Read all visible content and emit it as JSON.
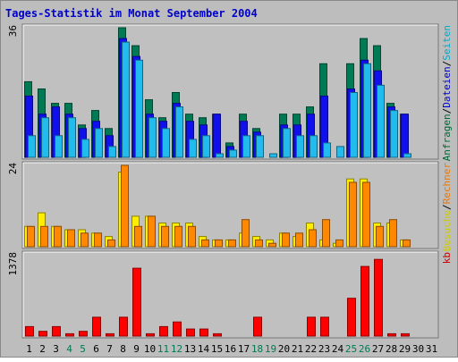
{
  "chart_data": {
    "type": "bar",
    "title": "Tages-Statistik im Monat September 2004",
    "categories": [
      "1",
      "2",
      "3",
      "4",
      "5",
      "6",
      "7",
      "8",
      "9",
      "10",
      "11",
      "12",
      "13",
      "14",
      "15",
      "16",
      "17",
      "18",
      "19",
      "20",
      "21",
      "22",
      "23",
      "24",
      "25",
      "26",
      "27",
      "28",
      "29",
      "30",
      "31"
    ],
    "weekend_days": [
      "4",
      "5",
      "11",
      "12",
      "18",
      "19",
      "25",
      "26"
    ],
    "panels": [
      {
        "name": "top",
        "ymax_label": "36",
        "ymax": 36,
        "legend": [
          {
            "label": "Anfragen",
            "color": "#006633"
          },
          {
            "label": "/",
            "color": "#000000"
          },
          {
            "label": "Dateien",
            "color": "#0000cc"
          },
          {
            "label": "/",
            "color": "#000000"
          },
          {
            "label": "Seiten",
            "color": "#00aacc"
          }
        ],
        "series": [
          {
            "name": "Anfragen",
            "color": "#007a55",
            "values": [
              21,
              19,
              15,
              15,
              9,
              13,
              8,
              36,
              31,
              16,
              11,
              18,
              12,
              11,
              12,
              4,
              12,
              8,
              0,
              12,
              12,
              14,
              26,
              0,
              26,
              33,
              31,
              15,
              12,
              0,
              0
            ]
          },
          {
            "name": "Dateien",
            "color": "#1010ee",
            "values": [
              17,
              12,
              14,
              12,
              8,
              10,
              6,
              33,
              28,
              12,
              10,
              15,
              10,
              9,
              12,
              3,
              10,
              7,
              0,
              9,
              9,
              12,
              17,
              0,
              19,
              27,
              24,
              14,
              12,
              0,
              0
            ]
          },
          {
            "name": "Seiten",
            "color": "#22bbee",
            "values": [
              6,
              11,
              6,
              11,
              5,
              8,
              3,
              32,
              27,
              11,
              8,
              14,
              5,
              6,
              1,
              2,
              6,
              6,
              1,
              8,
              6,
              6,
              4,
              3,
              18,
              26,
              20,
              13,
              1,
              0,
              0
            ]
          }
        ]
      },
      {
        "name": "middle",
        "ymax_label": "24",
        "ymax": 24,
        "legend": [
          {
            "label": "Besuche",
            "color": "#cccc00"
          },
          {
            "label": "/",
            "color": "#000000"
          },
          {
            "label": "Rechner",
            "color": "#ee7700"
          }
        ],
        "series": [
          {
            "name": "Besuche",
            "color": "#ffee00",
            "values": [
              6,
              10,
              6,
              5,
              5,
              4,
              3,
              22,
              9,
              9,
              7,
              7,
              7,
              3,
              2,
              2,
              4,
              3,
              2,
              4,
              3,
              7,
              2,
              1,
              20,
              20,
              7,
              7,
              2,
              0,
              0
            ]
          },
          {
            "name": "Rechner",
            "color": "#ff8800",
            "values": [
              6,
              6,
              6,
              5,
              4,
              4,
              2,
              24,
              6,
              9,
              6,
              6,
              6,
              2,
              2,
              2,
              8,
              2,
              1,
              4,
              4,
              5,
              8,
              2,
              19,
              19,
              6,
              8,
              2,
              0,
              0
            ]
          }
        ]
      },
      {
        "name": "bottom",
        "ymax_label": "1378",
        "ymax": 1378,
        "legend": [
          {
            "label": "kb",
            "color": "#cc0000"
          }
        ],
        "series": [
          {
            "name": "kb",
            "color": "#ff0000",
            "values": [
              160,
              80,
              160,
              40,
              80,
              320,
              40,
              320,
              1150,
              40,
              160,
              240,
              120,
              120,
              40,
              0,
              0,
              320,
              0,
              0,
              0,
              320,
              320,
              0,
              640,
              1180,
              1300,
              40,
              40,
              0,
              0
            ]
          }
        ]
      }
    ]
  }
}
